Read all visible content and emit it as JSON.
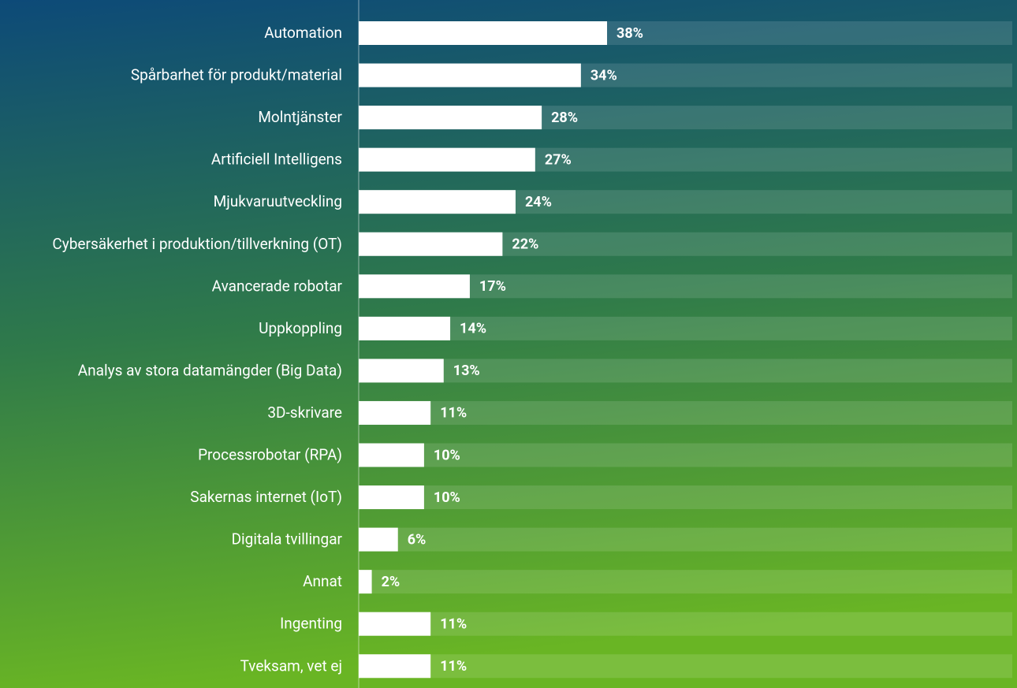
{
  "chart_data": {
    "type": "bar",
    "orientation": "horizontal",
    "categories": [
      "Automation",
      "Spårbarhet för produkt/material",
      "Molntjänster",
      "Artificiell Intelligens",
      "Mjukvaruutveckling",
      "Cybersäkerhet i produktion/tillverkning (OT)",
      "Avancerade robotar",
      "Uppkoppling",
      "Analys av stora datamängder (Big Data)",
      "3D-skrivare",
      "Processrobotar (RPA)",
      "Sakernas internet (IoT)",
      "Digitala tvillingar",
      "Annat",
      "Ingenting",
      "Tveksam, vet ej"
    ],
    "values": [
      38,
      34,
      28,
      27,
      24,
      22,
      17,
      14,
      13,
      11,
      10,
      10,
      6,
      2,
      11,
      11
    ],
    "value_labels": [
      "38%",
      "34%",
      "28%",
      "27%",
      "24%",
      "22%",
      "17%",
      "14%",
      "13%",
      "11%",
      "10%",
      "10%",
      "6%",
      "2%",
      "11%",
      "11%"
    ],
    "color": "#ffffff",
    "xlim": [
      0,
      100
    ]
  }
}
